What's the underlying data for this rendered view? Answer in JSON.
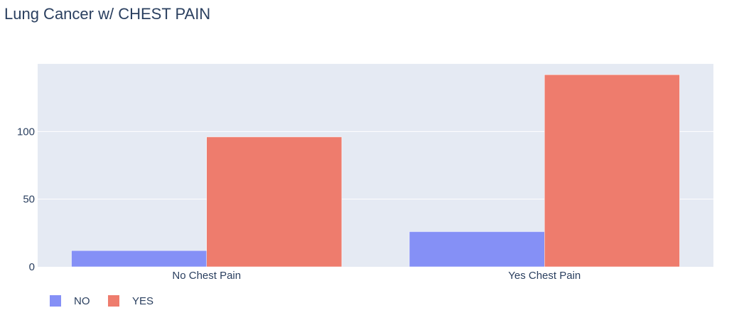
{
  "chart_data": {
    "type": "bar",
    "title": "Lung Cancer w/ CHEST PAIN",
    "xlabel": "",
    "ylabel": "",
    "categories": [
      "No Chest Pain",
      "Yes Chest Pain"
    ],
    "series": [
      {
        "name": "NO",
        "values": [
          12,
          26
        ],
        "color": "#8590f6"
      },
      {
        "name": "YES",
        "values": [
          96,
          142
        ],
        "color": "#ee7c6d"
      }
    ],
    "ylim": [
      0,
      150
    ],
    "yticks": [
      0,
      50,
      100
    ],
    "grid": true,
    "legend_position": "bottom-left",
    "plot_background": "#e5eaf3",
    "grid_color": "#ffffff",
    "text_color": "#2a3f5f"
  }
}
